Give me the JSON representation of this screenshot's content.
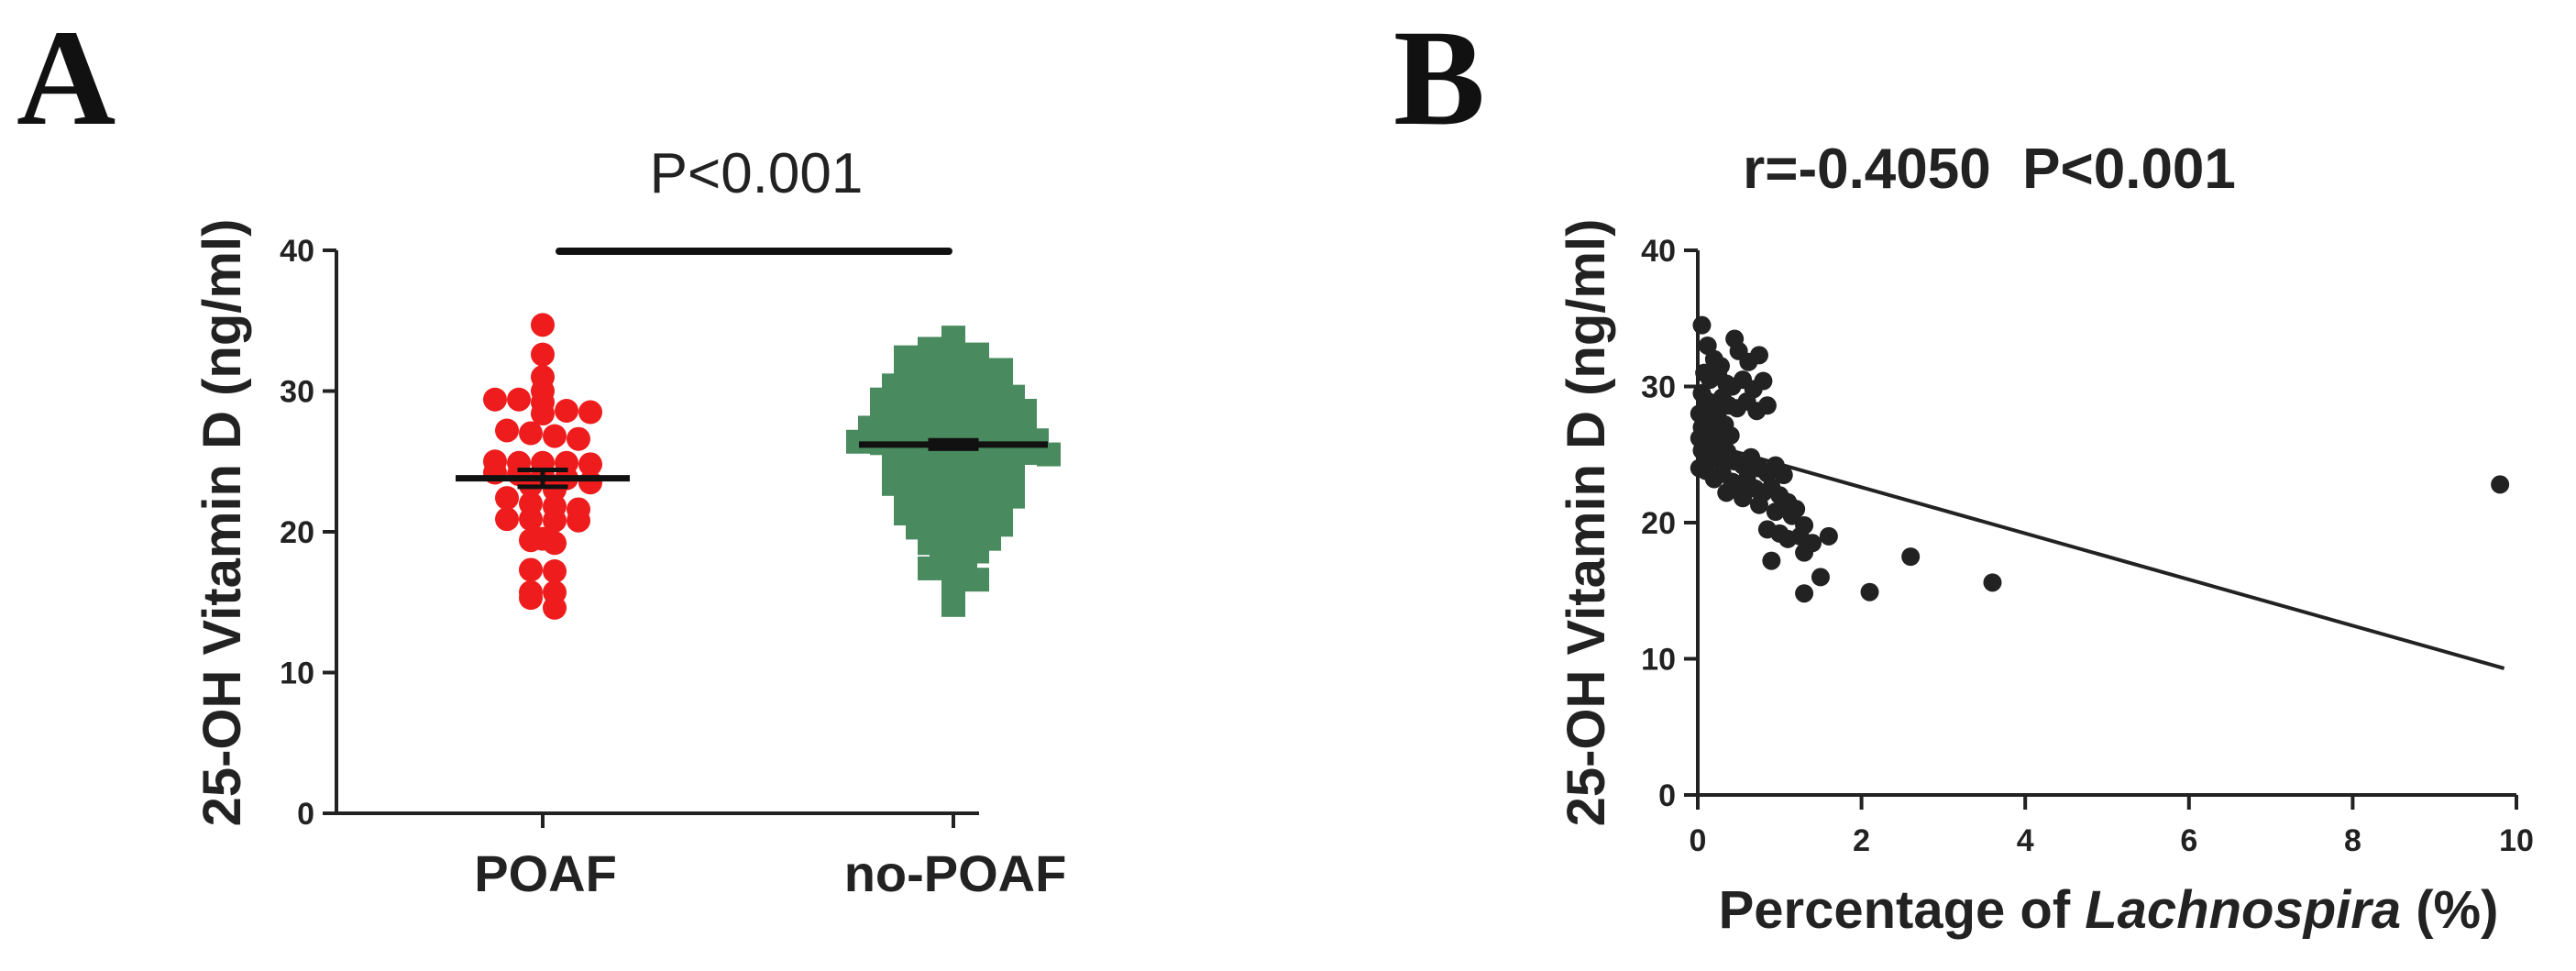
{
  "panels": {
    "a_label": "A",
    "b_label": "B"
  },
  "chart_data": [
    {
      "type": "scatter",
      "subtype": "dot-plot",
      "panel": "A",
      "annotation": "P<0.001",
      "ylabel": "25-OH Vitamin D (ng/ml)",
      "xlabel": "",
      "ylim": [
        0,
        40
      ],
      "yticks": [
        "0",
        "10",
        "20",
        "30",
        "40"
      ],
      "categories": [
        "POAF",
        "no-POAF"
      ],
      "colors": {
        "POAF": "#ee1c1c",
        "no-POAF": "#4a8a5f"
      },
      "markers": {
        "POAF": "circle",
        "no-POAF": "square"
      },
      "series": [
        {
          "name": "POAF",
          "mean": 23.8,
          "sem": 0.6,
          "values": [
            34.7,
            32.6,
            31.0,
            30.0,
            29.4,
            29.4,
            29.2,
            28.6,
            28.4,
            28.5,
            27.2,
            27.0,
            26.8,
            26.6,
            25.0,
            24.9,
            24.8,
            24.9,
            24.9,
            24.2,
            24.1,
            24.0,
            23.8,
            23.5,
            23.3,
            23.0,
            22.4,
            22.0,
            21.8,
            21.6,
            20.8,
            20.8,
            20.9,
            20.9,
            19.4,
            19.2,
            19.5,
            17.3,
            17.2,
            15.7,
            15.7,
            15.3,
            14.6
          ]
        },
        {
          "name": "no-POAF",
          "mean": 26.2,
          "sem": 0.3,
          "values": [
            33.8,
            33.0,
            32.7,
            32.6,
            32.4,
            32.1,
            31.8,
            31.6,
            31.5,
            31.3,
            30.9,
            30.8,
            30.6,
            30.6,
            30.4,
            30.2,
            30.0,
            29.9,
            29.8,
            29.6,
            29.4,
            29.3,
            29.1,
            29.0,
            28.8,
            28.7,
            28.6,
            28.4,
            28.2,
            28.1,
            27.9,
            27.8,
            27.7,
            27.5,
            27.4,
            27.3,
            27.2,
            27.0,
            26.9,
            26.8,
            26.6,
            26.5,
            26.4,
            26.3,
            26.2,
            26.1,
            26.0,
            25.9,
            25.7,
            25.6,
            25.5,
            25.3,
            25.2,
            25.0,
            24.9,
            24.7,
            24.6,
            24.4,
            24.3,
            24.1,
            23.9,
            23.7,
            23.6,
            23.4,
            23.2,
            23.0,
            22.9,
            22.7,
            22.5,
            22.3,
            22.1,
            21.9,
            21.7,
            21.5,
            21.3,
            21.1,
            20.9,
            20.7,
            20.5,
            20.3,
            20.1,
            19.8,
            19.5,
            19.2,
            18.9,
            18.6,
            18.2,
            17.8,
            17.4,
            17.0,
            16.6,
            15.8,
            14.8
          ]
        }
      ]
    },
    {
      "type": "scatter",
      "panel": "B",
      "title": "r=-0.4050  P<0.001",
      "ylabel": "25-OH Vitamin D (ng/ml)",
      "xlabel_prefix": "Percentage of ",
      "xlabel_italic": "Lachnospira",
      "xlabel_suffix": " (%)",
      "xlim": [
        0,
        10
      ],
      "ylim": [
        0,
        40
      ],
      "xticks": [
        "0",
        "2",
        "4",
        "6",
        "8",
        "10"
      ],
      "yticks": [
        "0",
        "10",
        "20",
        "30",
        "40"
      ],
      "point_color": "#222222",
      "regression": {
        "x": [
          0.05,
          9.85
        ],
        "y": [
          25.9,
          9.3
        ]
      },
      "points": [
        [
          0.05,
          34.5
        ],
        [
          0.12,
          33.0
        ],
        [
          0.2,
          32.0
        ],
        [
          0.28,
          31.5
        ],
        [
          0.45,
          33.5
        ],
        [
          0.5,
          32.6
        ],
        [
          0.62,
          31.8
        ],
        [
          0.75,
          32.3
        ],
        [
          0.08,
          31.0
        ],
        [
          0.15,
          30.5
        ],
        [
          0.25,
          30.8
        ],
        [
          0.35,
          30.2
        ],
        [
          0.42,
          30.0
        ],
        [
          0.55,
          30.5
        ],
        [
          0.68,
          29.8
        ],
        [
          0.8,
          30.4
        ],
        [
          0.05,
          29.5
        ],
        [
          0.1,
          29.0
        ],
        [
          0.18,
          28.8
        ],
        [
          0.3,
          29.2
        ],
        [
          0.38,
          28.6
        ],
        [
          0.48,
          28.4
        ],
        [
          0.6,
          28.9
        ],
        [
          0.72,
          28.2
        ],
        [
          0.85,
          28.6
        ],
        [
          0.02,
          28.0
        ],
        [
          0.08,
          27.8
        ],
        [
          0.16,
          27.5
        ],
        [
          0.24,
          27.9
        ],
        [
          0.33,
          27.2
        ],
        [
          0.05,
          27.0
        ],
        [
          0.12,
          26.8
        ],
        [
          0.2,
          26.5
        ],
        [
          0.28,
          26.9
        ],
        [
          0.4,
          26.4
        ],
        [
          0.02,
          26.2
        ],
        [
          0.08,
          26.0
        ],
        [
          0.14,
          25.8
        ],
        [
          0.22,
          25.6
        ],
        [
          0.3,
          26.1
        ],
        [
          0.05,
          25.3
        ],
        [
          0.1,
          25.0
        ],
        [
          0.18,
          24.8
        ],
        [
          0.26,
          24.6
        ],
        [
          0.36,
          25.2
        ],
        [
          0.45,
          24.5
        ],
        [
          0.55,
          24.2
        ],
        [
          0.65,
          24.8
        ],
        [
          0.75,
          24.0
        ],
        [
          0.85,
          23.6
        ],
        [
          0.95,
          24.2
        ],
        [
          1.05,
          23.5
        ],
        [
          0.02,
          24.0
        ],
        [
          0.1,
          23.8
        ],
        [
          0.2,
          23.2
        ],
        [
          0.3,
          23.6
        ],
        [
          0.42,
          23.0
        ],
        [
          0.5,
          22.8
        ],
        [
          0.6,
          23.2
        ],
        [
          0.7,
          22.5
        ],
        [
          0.8,
          22.2
        ],
        [
          0.9,
          22.6
        ],
        [
          1.0,
          22.0
        ],
        [
          1.1,
          21.5
        ],
        [
          1.2,
          21.0
        ],
        [
          0.35,
          22.2
        ],
        [
          0.55,
          21.8
        ],
        [
          0.75,
          21.3
        ],
        [
          0.95,
          20.8
        ],
        [
          1.15,
          20.5
        ],
        [
          1.3,
          19.8
        ],
        [
          0.85,
          19.5
        ],
        [
          1.0,
          19.2
        ],
        [
          1.1,
          18.8
        ],
        [
          1.25,
          19.0
        ],
        [
          1.4,
          18.5
        ],
        [
          1.6,
          19.0
        ],
        [
          0.9,
          17.2
        ],
        [
          1.3,
          17.8
        ],
        [
          1.5,
          16.0
        ],
        [
          1.3,
          14.8
        ],
        [
          2.1,
          14.9
        ],
        [
          2.6,
          17.5
        ],
        [
          3.6,
          15.6
        ],
        [
          9.8,
          22.8
        ]
      ]
    }
  ]
}
